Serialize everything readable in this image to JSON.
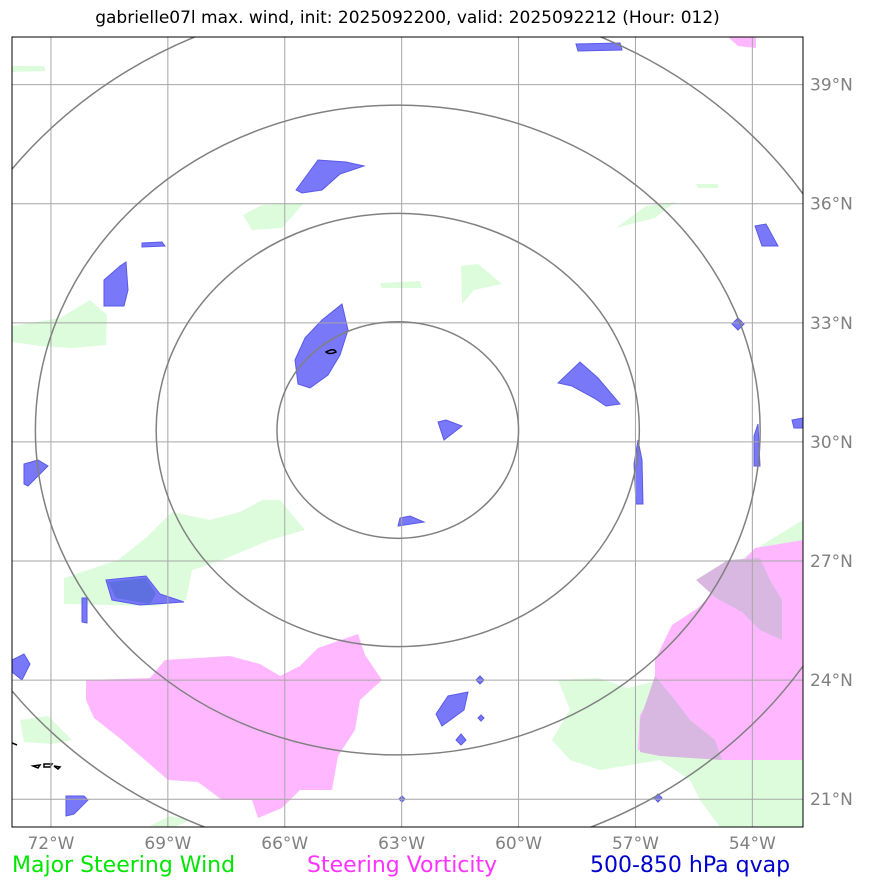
{
  "title": "gabrielle07l max. wind, init: 2025092200, valid: 2025092212 (Hour: 012)",
  "map": {
    "lon_range": [
      -73.0,
      -52.7
    ],
    "lat_range": [
      20.3,
      40.2
    ],
    "lon_ticks": [
      {
        "value": -72,
        "label": "72°W"
      },
      {
        "value": -69,
        "label": "69°W"
      },
      {
        "value": -66,
        "label": "66°W"
      },
      {
        "value": -63,
        "label": "63°W"
      },
      {
        "value": -60,
        "label": "60°W"
      },
      {
        "value": -57,
        "label": "57°W"
      },
      {
        "value": -54,
        "label": "54°W"
      }
    ],
    "lat_ticks": [
      {
        "value": 39,
        "label": "39°N"
      },
      {
        "value": 36,
        "label": "36°N"
      },
      {
        "value": 33,
        "label": "33°N"
      },
      {
        "value": 30,
        "label": "30°N"
      },
      {
        "value": 27,
        "label": "27°N"
      },
      {
        "value": 24,
        "label": "24°N"
      },
      {
        "value": 21,
        "label": "21°N"
      }
    ],
    "range_rings_center": {
      "lon": -63.1,
      "lat": 30.3
    },
    "range_ring_radii_deg": [
      3.1,
      6.2,
      9.3,
      12.4
    ]
  },
  "legend": {
    "wind_label": "Major Steering Wind",
    "vorticity_label": "Steering Vorticity",
    "qvap_label": "500-850 hPa qvap"
  },
  "colors": {
    "wind": "#00e600",
    "vorticity": "#ff33ff",
    "qvap": "#0000cc",
    "wind_fill": "#dcfcdc",
    "vorticity_fill": "#ffb8ff",
    "qvap_fill": "#7878f8",
    "grid": "#a6a6a6",
    "ring": "#808080",
    "tick_text": "#808080"
  }
}
